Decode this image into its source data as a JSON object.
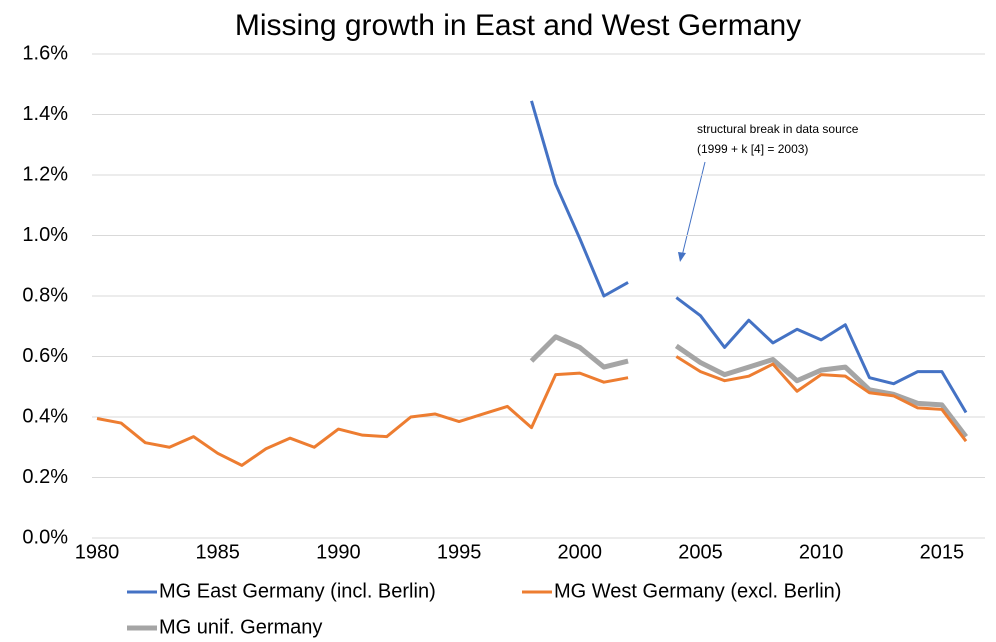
{
  "chart_data": {
    "type": "line",
    "title": "Missing growth in East and West Germany",
    "x": [
      1980,
      1981,
      1982,
      1983,
      1984,
      1985,
      1986,
      1987,
      1988,
      1989,
      1990,
      1991,
      1992,
      1993,
      1994,
      1995,
      1996,
      1997,
      1998,
      1999,
      2000,
      2001,
      2002,
      2003,
      2004,
      2005,
      2006,
      2007,
      2008,
      2009,
      2010,
      2011,
      2012,
      2013,
      2014,
      2015,
      2016
    ],
    "xlim": [
      1980,
      2016
    ],
    "xticks": [
      1980,
      1985,
      1990,
      1995,
      2000,
      2005,
      2010,
      2015
    ],
    "ylim": [
      0,
      1.6
    ],
    "yticks": [
      {
        "value": 0,
        "label": "0.0%"
      },
      {
        "value": 0.2,
        "label": "0.2%"
      },
      {
        "value": 0.4,
        "label": "0.4%"
      },
      {
        "value": 0.6,
        "label": "0.6%"
      },
      {
        "value": 0.8,
        "label": "0.8%"
      },
      {
        "value": 1.0,
        "label": "1.0%"
      },
      {
        "value": 1.2,
        "label": "1.2%"
      },
      {
        "value": 1.4,
        "label": "1.4%"
      },
      {
        "value": 1.6,
        "label": "1.6%"
      }
    ],
    "grid": true,
    "series": [
      {
        "name": "MG East Germany (incl. Berlin)",
        "color": "#4472c4",
        "values": [
          null,
          null,
          null,
          null,
          null,
          null,
          null,
          null,
          null,
          null,
          null,
          null,
          null,
          null,
          null,
          null,
          null,
          null,
          1.445,
          1.17,
          0.99,
          0.8,
          0.845,
          null,
          0.795,
          0.735,
          0.63,
          0.72,
          0.645,
          0.69,
          0.655,
          0.705,
          0.53,
          0.51,
          0.55,
          0.55,
          0.415
        ]
      },
      {
        "name": "MG West Germany (excl. Berlin)",
        "color": "#ed7d31",
        "values": [
          0.395,
          0.38,
          0.315,
          0.3,
          0.335,
          0.28,
          0.24,
          0.295,
          0.33,
          0.3,
          0.36,
          0.34,
          0.335,
          0.4,
          0.41,
          0.385,
          0.41,
          0.435,
          0.365,
          0.54,
          0.545,
          0.515,
          0.53,
          null,
          0.6,
          0.55,
          0.52,
          0.535,
          0.575,
          0.485,
          0.54,
          0.535,
          0.48,
          0.47,
          0.43,
          0.425,
          0.32
        ]
      },
      {
        "name": "MG unif. Germany",
        "color": "#a5a5a5",
        "values": [
          null,
          null,
          null,
          null,
          null,
          null,
          null,
          null,
          null,
          null,
          null,
          null,
          null,
          null,
          null,
          null,
          null,
          null,
          0.585,
          0.665,
          0.63,
          0.565,
          0.585,
          null,
          0.635,
          0.58,
          0.54,
          0.565,
          0.59,
          0.52,
          0.555,
          0.565,
          0.49,
          0.475,
          0.445,
          0.44,
          0.335
        ]
      }
    ],
    "annotation": [
      "structural break in data source",
      "(1999 + k [4] = 2003)"
    ]
  }
}
